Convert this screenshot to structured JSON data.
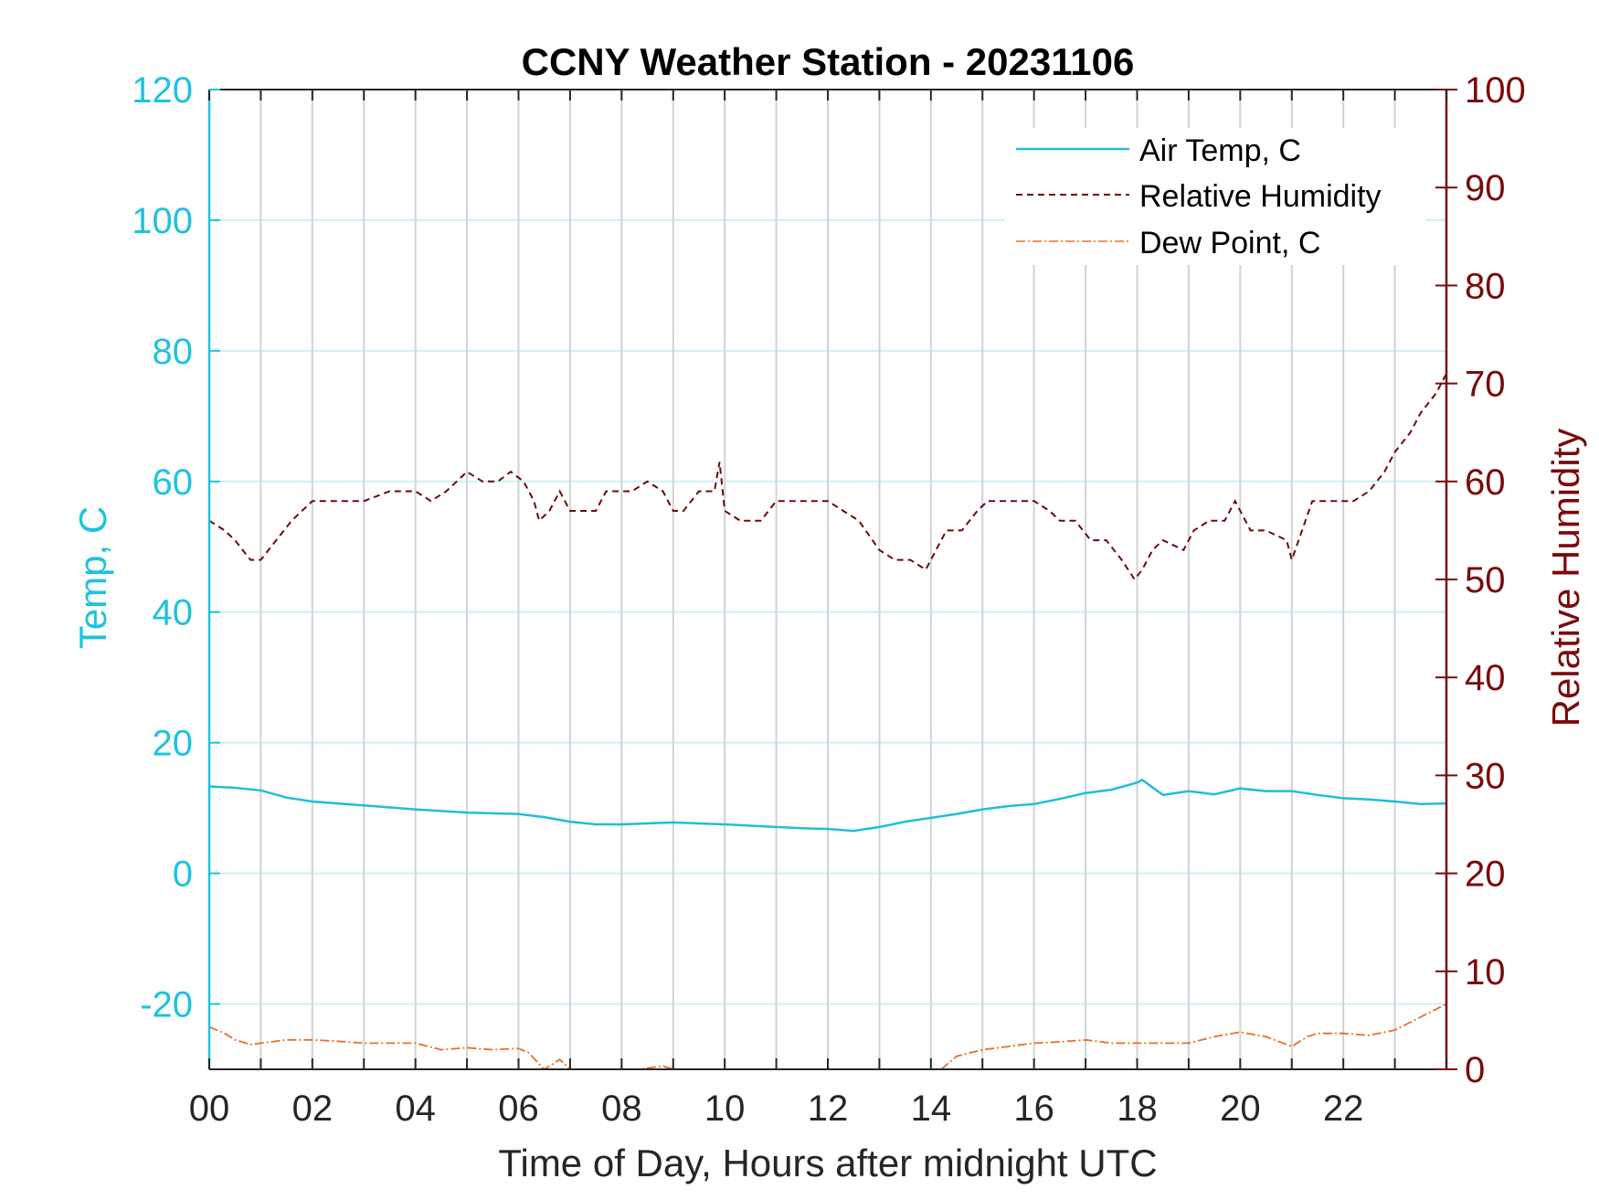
{
  "chart_data": {
    "type": "line",
    "title": "CCNY Weather Station - 20231106",
    "xlabel": "Time of Day, Hours after midnight UTC",
    "ylabel_left": "Temp, C",
    "ylabel_right": "Relative Humidity",
    "xlim": [
      0,
      24
    ],
    "ylim_left": [
      -30,
      120
    ],
    "ylim_right": [
      0,
      100
    ],
    "x_ticks": [
      0,
      2,
      4,
      6,
      8,
      10,
      12,
      14,
      16,
      18,
      20,
      22
    ],
    "x_tick_labels": [
      "00",
      "02",
      "04",
      "06",
      "08",
      "10",
      "12",
      "14",
      "16",
      "18",
      "20",
      "22"
    ],
    "y_left_ticks": [
      -20,
      0,
      20,
      40,
      60,
      80,
      100,
      120
    ],
    "y_left_tick_labels": [
      "-20",
      "0",
      "20",
      "40",
      "60",
      "80",
      "100",
      "120"
    ],
    "y_right_ticks": [
      0,
      10,
      20,
      30,
      40,
      50,
      60,
      70,
      80,
      90,
      100
    ],
    "y_right_tick_labels": [
      "0",
      "10",
      "20",
      "30",
      "40",
      "50",
      "60",
      "70",
      "80",
      "90",
      "100"
    ],
    "grid": "vertical lines every hour; horizontal lines at left-axis ticks",
    "legend_position": "top-right",
    "colors": {
      "left_axis": "#1ec3dc",
      "right_axis": "#7a0a0a",
      "grid_vertical": "#cfd3d6",
      "grid_horizontal": "#cdeff5"
    },
    "series": [
      {
        "name": "Air Temp, C",
        "axis": "left",
        "color": "#1ebfd6",
        "style": "solid",
        "x": [
          0,
          0.5,
          1,
          1.5,
          2,
          3,
          4,
          5,
          6,
          6.5,
          7,
          7.5,
          8,
          9,
          10,
          11,
          11.5,
          12,
          12.5,
          13,
          13.5,
          14,
          14.5,
          15,
          15.5,
          16,
          16.5,
          17,
          17.5,
          18,
          18.1,
          18.5,
          19,
          19.5,
          20,
          20.5,
          21,
          21.5,
          22,
          22.5,
          23,
          23.5,
          24
        ],
        "values": [
          13.3,
          13.1,
          12.7,
          11.6,
          11.0,
          10.4,
          9.8,
          9.3,
          9.1,
          8.6,
          7.9,
          7.5,
          7.5,
          7.8,
          7.5,
          7.1,
          6.9,
          6.8,
          6.5,
          7.1,
          7.9,
          8.5,
          9.1,
          9.8,
          10.3,
          10.6,
          11.4,
          12.3,
          12.8,
          13.9,
          14.3,
          12.0,
          12.6,
          12.1,
          13.0,
          12.6,
          12.6,
          12.0,
          11.5,
          11.3,
          11.0,
          10.6,
          10.7
        ]
      },
      {
        "name": "Relative Humidity",
        "axis": "right",
        "color": "#6b0a0a",
        "style": "dashed",
        "x": [
          0,
          0.3,
          0.5,
          0.8,
          1.0,
          1.3,
          1.6,
          2.0,
          2.5,
          3.0,
          3.5,
          4.0,
          4.3,
          4.6,
          5.0,
          5.3,
          5.6,
          5.85,
          6.1,
          6.3,
          6.4,
          6.6,
          6.8,
          7.0,
          7.2,
          7.5,
          7.7,
          7.9,
          8.2,
          8.5,
          8.8,
          9.0,
          9.2,
          9.5,
          9.8,
          9.9,
          10.0,
          10.3,
          10.7,
          11.0,
          11.3,
          11.7,
          12.0,
          12.3,
          12.6,
          13.0,
          13.3,
          13.6,
          13.9,
          14.1,
          14.3,
          14.6,
          14.9,
          15.1,
          15.4,
          15.7,
          16.0,
          16.3,
          16.5,
          16.8,
          17.1,
          17.4,
          17.7,
          17.95,
          18.1,
          18.3,
          18.5,
          18.9,
          19.1,
          19.4,
          19.7,
          19.9,
          20.2,
          20.5,
          20.9,
          21.0,
          21.2,
          21.4,
          21.6,
          21.9,
          22.2,
          22.5,
          22.8,
          23.0,
          23.3,
          23.5,
          23.8,
          24.0
        ],
        "values": [
          56,
          55,
          54,
          52,
          52,
          54,
          56,
          58,
          58,
          58,
          59,
          59,
          58,
          59,
          61,
          60,
          60,
          61,
          60,
          58,
          56,
          57,
          59,
          57,
          57,
          57,
          59,
          59,
          59,
          60,
          59,
          57,
          57,
          59,
          59,
          62,
          57,
          56,
          56,
          58,
          58,
          58,
          58,
          57,
          56,
          53,
          52,
          52,
          51,
          53,
          55,
          55,
          57,
          58,
          58,
          58,
          58,
          57,
          56,
          56,
          54,
          54,
          52,
          50,
          51,
          53,
          54,
          53,
          55,
          56,
          56,
          58,
          55,
          55,
          54,
          52,
          55,
          58,
          58,
          58,
          58,
          59,
          61,
          63,
          65,
          67,
          69,
          71
        ]
      },
      {
        "name": "Dew Point, C",
        "axis": "left",
        "color": "#e3702b",
        "style": "dashdot",
        "x": [
          0,
          0.3,
          0.5,
          0.8,
          1.0,
          1.5,
          2.0,
          2.5,
          3.0,
          4.0,
          4.5,
          5.0,
          5.5,
          6.0,
          6.2,
          6.4,
          6.5,
          6.7,
          6.8,
          7.0,
          7.2,
          7.6,
          7.8,
          8.0,
          8.2,
          8.5,
          8.8,
          9.0,
          9.3,
          9.5,
          9.8,
          10.0,
          14.2,
          14.5,
          15.0,
          15.5,
          16.0,
          16.5,
          17.0,
          17.5,
          18.0,
          18.5,
          19.0,
          19.5,
          20.0,
          20.5,
          21.0,
          21.3,
          21.5,
          22.0,
          22.5,
          23.0,
          23.5,
          24.0
        ],
        "values": [
          -23.5,
          -24.5,
          -25.5,
          -26.2,
          -26.0,
          -25.5,
          -25.5,
          -25.7,
          -26.0,
          -26.0,
          -27.0,
          -26.7,
          -27.0,
          -26.8,
          -27.5,
          -29.2,
          -30.0,
          -29.0,
          -28.5,
          -30.0,
          -31.0,
          -30.5,
          -30.0,
          -30.0,
          -30.2,
          -29.8,
          -29.5,
          -30.0,
          -30.5,
          -30.0,
          -30.0,
          -30.0,
          -30.0,
          -28.0,
          -27.0,
          -26.5,
          -26.0,
          -25.8,
          -25.5,
          -26.0,
          -26.0,
          -26.0,
          -26.0,
          -25.0,
          -24.3,
          -25.0,
          -26.5,
          -25.0,
          -24.5,
          -24.5,
          -24.8,
          -24.0,
          -22.0,
          -20.0
        ]
      }
    ]
  }
}
